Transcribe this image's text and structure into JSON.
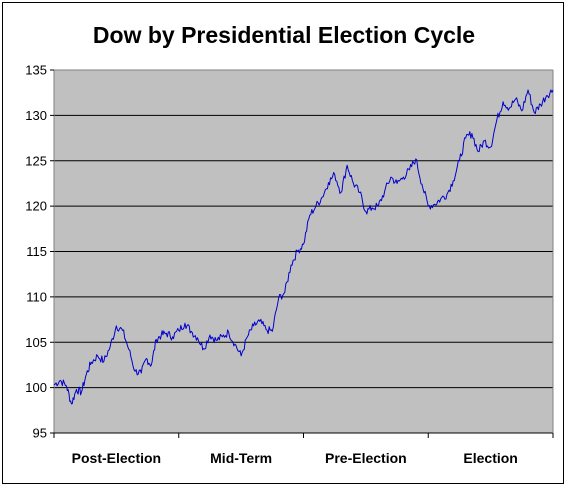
{
  "chart_data": {
    "type": "line",
    "title": "Dow by Presidential Election Cycle",
    "xlabel": "",
    "ylabel": "",
    "categories": [
      "Post-Election",
      "Mid-Term",
      "Pre-Election",
      "Election"
    ],
    "ylim": [
      95,
      135
    ],
    "yticks": [
      95,
      100,
      105,
      110,
      115,
      120,
      125,
      130,
      135
    ],
    "grid": true,
    "legend": "none",
    "colors": {
      "plot_background": "#c0c0c0",
      "line": "#0000cc",
      "gridline": "#000000"
    },
    "x_range": [
      0,
      4
    ],
    "series": [
      {
        "values_x": [
          0,
          0.05,
          0.1,
          0.14,
          0.18,
          0.22,
          0.26,
          0.3,
          0.35,
          0.4,
          0.45,
          0.5,
          0.55,
          0.6,
          0.65,
          0.7,
          0.74,
          0.78,
          0.82,
          0.86,
          0.9,
          0.95,
          1.0,
          1.05,
          1.1,
          1.15,
          1.2,
          1.25,
          1.3,
          1.35,
          1.4,
          1.45,
          1.5,
          1.55,
          1.6,
          1.65,
          1.7,
          1.75,
          1.8,
          1.85,
          1.9,
          1.95,
          2.0,
          2.05,
          2.1,
          2.15,
          2.2,
          2.25,
          2.3,
          2.35,
          2.4,
          2.45,
          2.5,
          2.55,
          2.6,
          2.65,
          2.7,
          2.75,
          2.8,
          2.85,
          2.9,
          2.95,
          3.0,
          3.05,
          3.1,
          3.15,
          3.2,
          3.25,
          3.3,
          3.35,
          3.4,
          3.45,
          3.5,
          3.55,
          3.6,
          3.65,
          3.7,
          3.75,
          3.8,
          3.85,
          3.9,
          3.95,
          4.0
        ],
        "values_y": [
          100.3,
          100.8,
          100.2,
          98.2,
          99.8,
          99.5,
          101.5,
          102.8,
          103.5,
          102.9,
          104.5,
          106.8,
          106.3,
          104.2,
          101.8,
          101.6,
          103.2,
          102.5,
          105.3,
          105.8,
          106.0,
          105.6,
          106.3,
          107.1,
          106.2,
          105.5,
          104.3,
          105.8,
          105.2,
          105.6,
          106.1,
          104.8,
          103.5,
          105.6,
          106.8,
          107.3,
          106.4,
          106.2,
          109.8,
          110.5,
          113.5,
          115.0,
          115.8,
          119.0,
          120.0,
          121.0,
          122.6,
          123.5,
          121.5,
          124.5,
          122.5,
          121.5,
          119.4,
          119.8,
          120.0,
          121.6,
          123.2,
          122.5,
          123.2,
          124.0,
          125.2,
          122.4,
          120.0,
          120.2,
          120.8,
          121.3,
          122.8,
          125.0,
          127.5,
          128.0,
          126.0,
          127.2,
          126.5,
          129.5,
          131.5,
          130.8,
          131.8,
          130.5,
          132.8,
          130.3,
          131.2,
          132.2,
          132.8
        ]
      }
    ]
  }
}
